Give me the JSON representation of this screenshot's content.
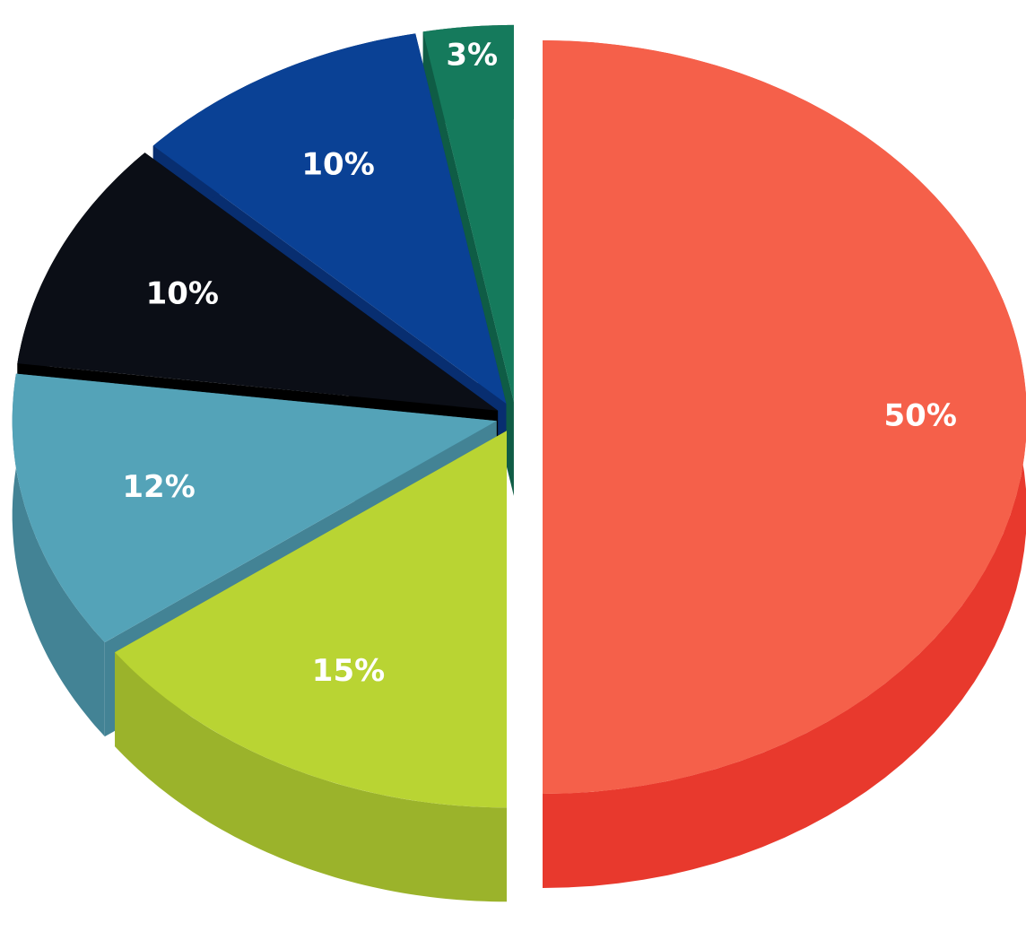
{
  "chart_data": {
    "type": "pie",
    "style": "3d-exploded",
    "title": "",
    "legend": "none",
    "grid": false,
    "slices": [
      {
        "label": "50%",
        "value": 50,
        "top_color": "#F5604A",
        "side_color": "#E8392D"
      },
      {
        "label": "15%",
        "value": 15,
        "top_color": "#B9D433",
        "side_color": "#9BB32B"
      },
      {
        "label": "12%",
        "value": 12,
        "top_color": "#54A3B8",
        "side_color": "#438395"
      },
      {
        "label": "10%",
        "value": 10,
        "top_color": "#0B0E16",
        "side_color": "#000000"
      },
      {
        "label": "10%",
        "value": 10,
        "top_color": "#0A4195",
        "side_color": "#082E70"
      },
      {
        "label": "3%",
        "value": 3,
        "top_color": "#157A5C",
        "side_color": "#0F5C45"
      }
    ]
  }
}
